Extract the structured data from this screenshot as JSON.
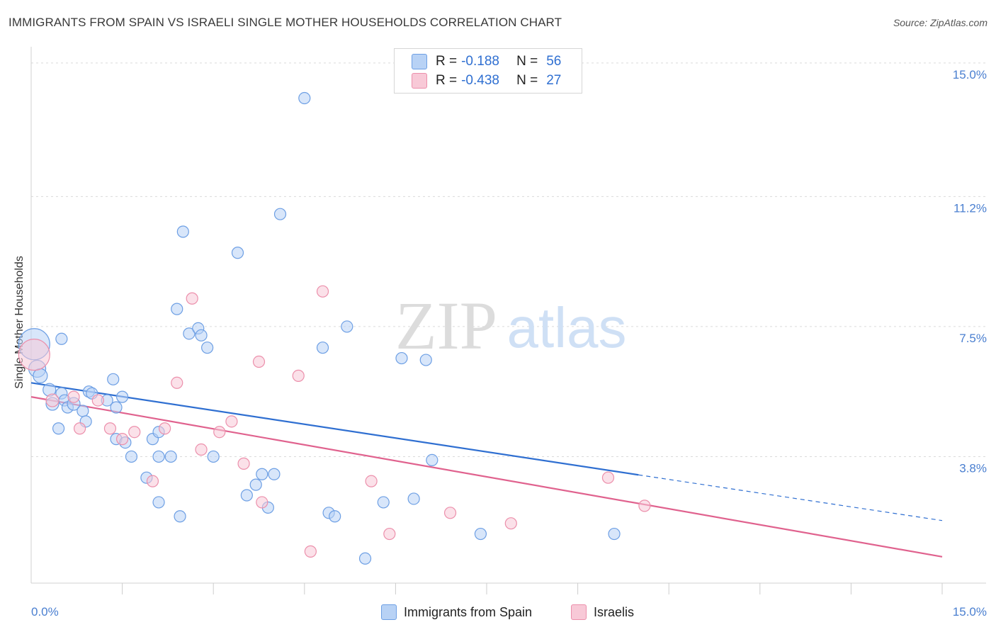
{
  "header": {
    "title": "IMMIGRANTS FROM SPAIN VS ISRAELI SINGLE MOTHER HOUSEHOLDS CORRELATION CHART",
    "source": "Source: ZipAtlas.com"
  },
  "watermark": {
    "zip": "ZIP",
    "atlas": "atlas"
  },
  "legend": {
    "series": [
      {
        "r_label": "R =",
        "r_value": "-0.188",
        "n_label": "N =",
        "n_value": "56",
        "color": "#6d9fe4",
        "fill": "#b8d2f5"
      },
      {
        "r_label": "R =",
        "r_value": "-0.438",
        "n_label": "N =",
        "n_value": "27",
        "color": "#ec8fab",
        "fill": "#f8c9d7"
      }
    ]
  },
  "bottom_legend": [
    "Immigrants from Spain",
    "Israelis"
  ],
  "chart_data": {
    "type": "scatter",
    "title": "IMMIGRANTS FROM SPAIN VS ISRAELI SINGLE MOTHER HOUSEHOLDS CORRELATION CHART",
    "ylabel": "Single Mother Households",
    "xlabel": "",
    "xlim": [
      0,
      15
    ],
    "ylim": [
      0.2,
      15.2
    ],
    "x_tick_labels": [
      "0.0%",
      "15.0%"
    ],
    "y_ticks": [
      {
        "value": 3.8,
        "label": "3.8%"
      },
      {
        "value": 7.5,
        "label": "7.5%"
      },
      {
        "value": 11.2,
        "label": "11.2%"
      },
      {
        "value": 15.0,
        "label": "15.0%"
      }
    ],
    "grid": true,
    "legend_position": "top-center",
    "series": [
      {
        "name": "Immigrants from Spain",
        "color": "#6d9fe4",
        "points": [
          [
            0.05,
            7.0,
            22
          ],
          [
            0.1,
            6.3,
            12
          ],
          [
            0.15,
            6.1,
            10
          ],
          [
            0.3,
            5.7,
            9
          ],
          [
            0.35,
            5.3,
            9
          ],
          [
            0.5,
            5.6,
            8
          ],
          [
            0.55,
            5.4,
            8
          ],
          [
            0.5,
            7.15,
            8
          ],
          [
            0.6,
            5.2,
            8
          ],
          [
            0.7,
            5.3,
            9
          ],
          [
            0.85,
            5.1,
            8
          ],
          [
            0.9,
            4.8,
            8
          ],
          [
            0.45,
            4.6,
            8
          ],
          [
            0.95,
            5.65,
            8
          ],
          [
            1.0,
            5.6,
            8
          ],
          [
            1.25,
            5.4,
            8
          ],
          [
            1.4,
            5.2,
            8
          ],
          [
            1.5,
            5.5,
            8
          ],
          [
            1.35,
            6.0,
            8
          ],
          [
            1.4,
            4.3,
            8
          ],
          [
            1.55,
            4.2,
            8
          ],
          [
            1.65,
            3.8,
            8
          ],
          [
            1.9,
            3.2,
            8
          ],
          [
            2.0,
            4.3,
            8
          ],
          [
            2.1,
            4.5,
            8
          ],
          [
            2.1,
            3.8,
            8
          ],
          [
            2.1,
            2.5,
            8
          ],
          [
            2.3,
            3.8,
            8
          ],
          [
            2.4,
            8.0,
            8
          ],
          [
            2.5,
            10.2,
            8
          ],
          [
            2.45,
            2.1,
            8
          ],
          [
            2.6,
            7.3,
            8
          ],
          [
            2.75,
            7.45,
            8
          ],
          [
            2.8,
            7.25,
            8
          ],
          [
            2.9,
            6.9,
            8
          ],
          [
            3.0,
            3.8,
            8
          ],
          [
            3.4,
            9.6,
            8
          ],
          [
            3.55,
            2.7,
            8
          ],
          [
            3.7,
            3.0,
            8
          ],
          [
            3.8,
            3.3,
            8
          ],
          [
            3.9,
            2.35,
            8
          ],
          [
            4.0,
            3.3,
            8
          ],
          [
            4.1,
            10.7,
            8
          ],
          [
            4.5,
            14.0,
            8
          ],
          [
            4.8,
            6.9,
            8
          ],
          [
            4.9,
            2.2,
            8
          ],
          [
            5.0,
            2.1,
            8
          ],
          [
            5.2,
            7.5,
            8
          ],
          [
            5.5,
            0.9,
            8
          ],
          [
            5.8,
            2.5,
            8
          ],
          [
            6.1,
            6.6,
            8
          ],
          [
            6.3,
            2.6,
            8
          ],
          [
            6.5,
            6.55,
            8
          ],
          [
            6.6,
            3.7,
            8
          ],
          [
            7.4,
            1.6,
            8
          ],
          [
            9.6,
            1.6,
            8
          ]
        ],
        "trend": {
          "x": [
            0,
            10
          ],
          "y": [
            5.9,
            3.28
          ],
          "dashed_to": [
            15,
            1.98
          ]
        }
      },
      {
        "name": "Israelis",
        "color": "#ec8fab",
        "points": [
          [
            0.05,
            6.7,
            22
          ],
          [
            0.35,
            5.4,
            9
          ],
          [
            0.7,
            5.5,
            8
          ],
          [
            0.8,
            4.6,
            8
          ],
          [
            1.1,
            5.4,
            8
          ],
          [
            1.3,
            4.6,
            8
          ],
          [
            1.5,
            4.3,
            8
          ],
          [
            1.7,
            4.5,
            8
          ],
          [
            2.0,
            3.1,
            8
          ],
          [
            2.2,
            4.6,
            8
          ],
          [
            2.4,
            5.9,
            8
          ],
          [
            2.65,
            8.3,
            8
          ],
          [
            2.8,
            4.0,
            8
          ],
          [
            3.1,
            4.5,
            8
          ],
          [
            3.3,
            4.8,
            8
          ],
          [
            3.5,
            3.6,
            8
          ],
          [
            3.75,
            6.5,
            8
          ],
          [
            3.8,
            2.5,
            8
          ],
          [
            4.4,
            6.1,
            8
          ],
          [
            4.6,
            1.1,
            8
          ],
          [
            4.8,
            8.5,
            8
          ],
          [
            5.6,
            3.1,
            8
          ],
          [
            5.9,
            1.6,
            8
          ],
          [
            6.9,
            2.2,
            8
          ],
          [
            7.9,
            1.9,
            8
          ],
          [
            9.5,
            3.2,
            8
          ],
          [
            10.1,
            2.4,
            8
          ]
        ],
        "trend": {
          "x": [
            0,
            15
          ],
          "y": [
            5.5,
            0.95
          ]
        }
      }
    ]
  }
}
